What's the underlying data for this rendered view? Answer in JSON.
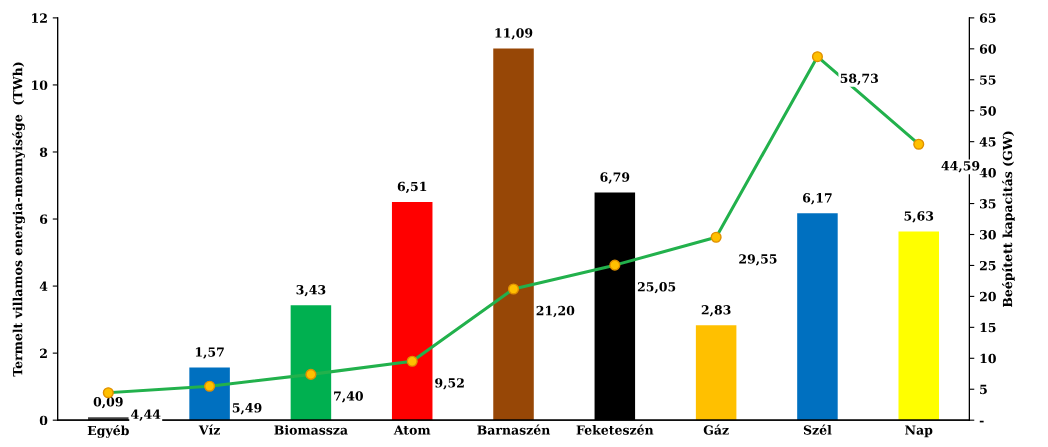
{
  "chart_data": {
    "type": "bar",
    "ylabel": "Termelt villamos energia-mennyisége  (TWh)",
    "y2label": "Beépített kapacitás (GW)",
    "categories": [
      "Egyéb",
      "Víz",
      "Biomassza",
      "Atom",
      "Barnaszén",
      "Feketeszén",
      "Gáz",
      "Szél",
      "Nap"
    ],
    "series": [
      {
        "colors": [
          "#404040",
          "#0070c0",
          "#00b050",
          "#ff0000",
          "#974706",
          "#000000",
          "#ffc000",
          "#0070c0",
          "#ffff00"
        ],
        "values": [
          0.09,
          1.57,
          3.43,
          6.51,
          11.09,
          6.79,
          2.83,
          6.17,
          5.63
        ],
        "value_labels": [
          "0,09",
          "1,57",
          "3,43",
          "6,51",
          "11,09",
          "6,79",
          "2,83",
          "6,17",
          "5,63"
        ]
      },
      {
        "type": "line",
        "axis": "y2",
        "color": "#22b14c",
        "marker": "circle",
        "values": [
          4.44,
          5.49,
          7.4,
          9.52,
          21.2,
          25.05,
          29.55,
          58.73,
          44.59
        ],
        "value_labels": [
          "4,44",
          "5,49",
          "7,40",
          "9,52",
          "21,20",
          "25,05",
          "29,55",
          "58,73",
          "44,59"
        ]
      }
    ],
    "ylim": [
      0,
      12
    ],
    "yticks": [
      0,
      2,
      4,
      6,
      8,
      10,
      12
    ],
    "y2lim": [
      0,
      65
    ],
    "y2ticks": [
      {
        "value": 0,
        "label": "-"
      },
      5,
      10,
      15,
      20,
      25,
      30,
      35,
      40,
      45,
      50,
      55,
      60,
      65
    ],
    "grid": false,
    "legend": false
  }
}
